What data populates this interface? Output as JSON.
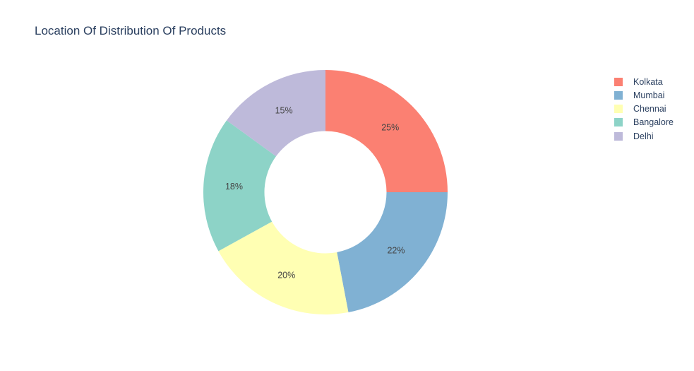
{
  "chart_data": {
    "type": "pie",
    "title": "Location Of Distribution Of Products",
    "hole": 0.5,
    "direction": "clockwise",
    "legend_position": "top-right",
    "slices": [
      {
        "label": "Kolkata",
        "value": 25,
        "text": "25%",
        "color": "#fb8072"
      },
      {
        "label": "Mumbai",
        "value": 22,
        "text": "22%",
        "color": "#80b1d3"
      },
      {
        "label": "Chennai",
        "value": 20,
        "text": "20%",
        "color": "#ffffb3"
      },
      {
        "label": "Bangalore",
        "value": 18,
        "text": "18%",
        "color": "#8dd3c7"
      },
      {
        "label": "Delhi",
        "value": 15,
        "text": "15%",
        "color": "#bebada"
      }
    ],
    "legend": [
      "Kolkata",
      "Mumbai",
      "Chennai",
      "Bangalore",
      "Delhi"
    ],
    "text_color": "#2a3f5f",
    "label_color": "#444444"
  }
}
